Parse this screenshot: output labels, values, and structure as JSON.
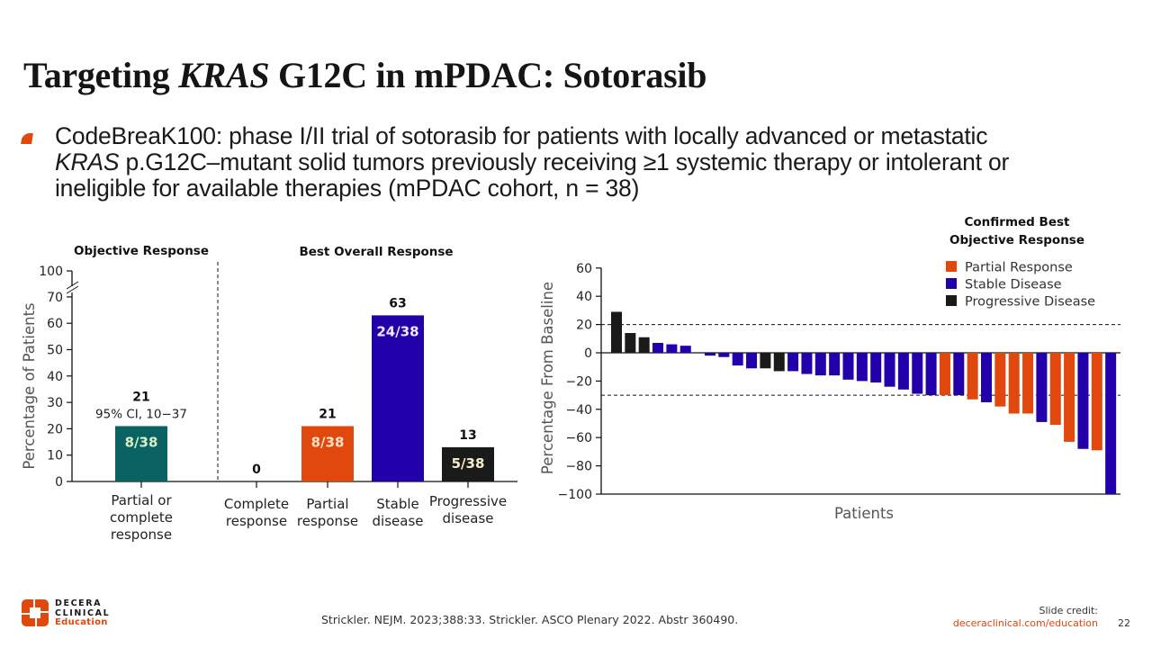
{
  "slide": {
    "title_prefix": "Targeting ",
    "title_italic": "KRAS",
    "title_suffix": " G12C in mPDAC: Sotorasib",
    "bullet_line1": "CodeBreaK100: phase I/II trial of sotorasib for patients with locally advanced or metastatic",
    "bullet_line2_italic": "KRAS",
    "bullet_line2_rest": " p.G12C–mutant solid tumors previously receiving ≥1 systemic therapy or intolerant or",
    "bullet_line3": "ineligible for available therapies (mPDAC cohort, n = 38)",
    "reference": "Strickler. NEJM. 2023;388:33. Strickler. ASCO Plenary 2022. Abstr 360490.",
    "logo_line1": "DECERA",
    "logo_line2": "CLINICAL",
    "logo_line3": "Education",
    "credit_label": "Slide credit:",
    "credit_link": "deceraclinical.com/education",
    "page_number": "22"
  },
  "colors": {
    "teal": "#0b6262",
    "orange": "#e0480e",
    "blue": "#2200aa",
    "black": "#1a1a1a",
    "accent": "#e0480e"
  },
  "chart_data": [
    {
      "type": "bar",
      "title_left": "Objective Response",
      "title_right": "Best Overall Response",
      "ylabel": "Percentage of Patients",
      "ylim": [
        0,
        100
      ],
      "axis_break": "between 70 and 100",
      "yticks": [
        "0",
        "10",
        "20",
        "30",
        "40",
        "50",
        "60",
        "70",
        "100"
      ],
      "categories": [
        {
          "label_lines": [
            "Partial or",
            "complete",
            "response"
          ],
          "group": "Objective Response",
          "value": 21,
          "value_label": "21",
          "ci_label": "95% CI, 10−37",
          "fraction": "8/38",
          "color": "#0b6262",
          "fraction_color": "#d8f0c8"
        },
        {
          "label_lines": [
            "Complete",
            "response"
          ],
          "group": "Best Overall Response",
          "value": 0,
          "value_label": "0",
          "fraction": "",
          "color": "#e0480e"
        },
        {
          "label_lines": [
            "Partial",
            "response"
          ],
          "group": "Best Overall Response",
          "value": 21,
          "value_label": "21",
          "fraction": "8/38",
          "color": "#e0480e",
          "fraction_color": "#fbe3c9"
        },
        {
          "label_lines": [
            "Stable",
            "disease"
          ],
          "group": "Best Overall Response",
          "value": 63,
          "value_label": "63",
          "fraction": "24/38",
          "color": "#2200aa",
          "fraction_color": "#f0eaff"
        },
        {
          "label_lines": [
            "Progressive",
            "disease"
          ],
          "group": "Best Overall Response",
          "value": 13,
          "value_label": "13",
          "fraction": "5/38",
          "color": "#1a1a1a",
          "fraction_color": "#f5ecc8"
        }
      ]
    },
    {
      "type": "bar",
      "subtype": "waterfall",
      "legend_title_line1": "Confirmed Best",
      "legend_title_line2": "Objective Response",
      "legend_position": "top-right",
      "legend": [
        {
          "key": "PR",
          "label": "Partial Response",
          "color": "#e0480e"
        },
        {
          "key": "SD",
          "label": "Stable Disease",
          "color": "#2200aa"
        },
        {
          "key": "PD",
          "label": "Progressive Disease",
          "color": "#1a1a1a"
        }
      ],
      "ylabel": "Percentage From Baseline",
      "xlabel": "Patients",
      "ylim": [
        -100,
        60
      ],
      "yticks": [
        "60",
        "40",
        "20",
        "0",
        "−20",
        "−40",
        "−60",
        "−80",
        "−100"
      ],
      "reference_lines": [
        20,
        -30
      ],
      "values": [
        29,
        14,
        11,
        7,
        6,
        5,
        -2,
        -3,
        -9,
        -11,
        -11,
        -13,
        -13,
        -15,
        -16,
        -16,
        -19,
        -20,
        -21,
        -24,
        -26,
        -29,
        -30,
        -30,
        -30,
        -33,
        -35,
        -38,
        -43,
        -43,
        -49,
        -51,
        -63,
        -68,
        -69,
        -100
      ],
      "response": [
        "PD",
        "PD",
        "PD",
        "SD",
        "SD",
        "SD",
        "SD",
        "SD",
        "SD",
        "SD",
        "PD",
        "PD",
        "SD",
        "SD",
        "SD",
        "SD",
        "SD",
        "SD",
        "SD",
        "SD",
        "SD",
        "SD",
        "SD",
        "PR",
        "SD",
        "PR",
        "SD",
        "PR",
        "PR",
        "PR",
        "SD",
        "PR",
        "PR",
        "SD",
        "PR",
        "SD"
      ]
    }
  ]
}
